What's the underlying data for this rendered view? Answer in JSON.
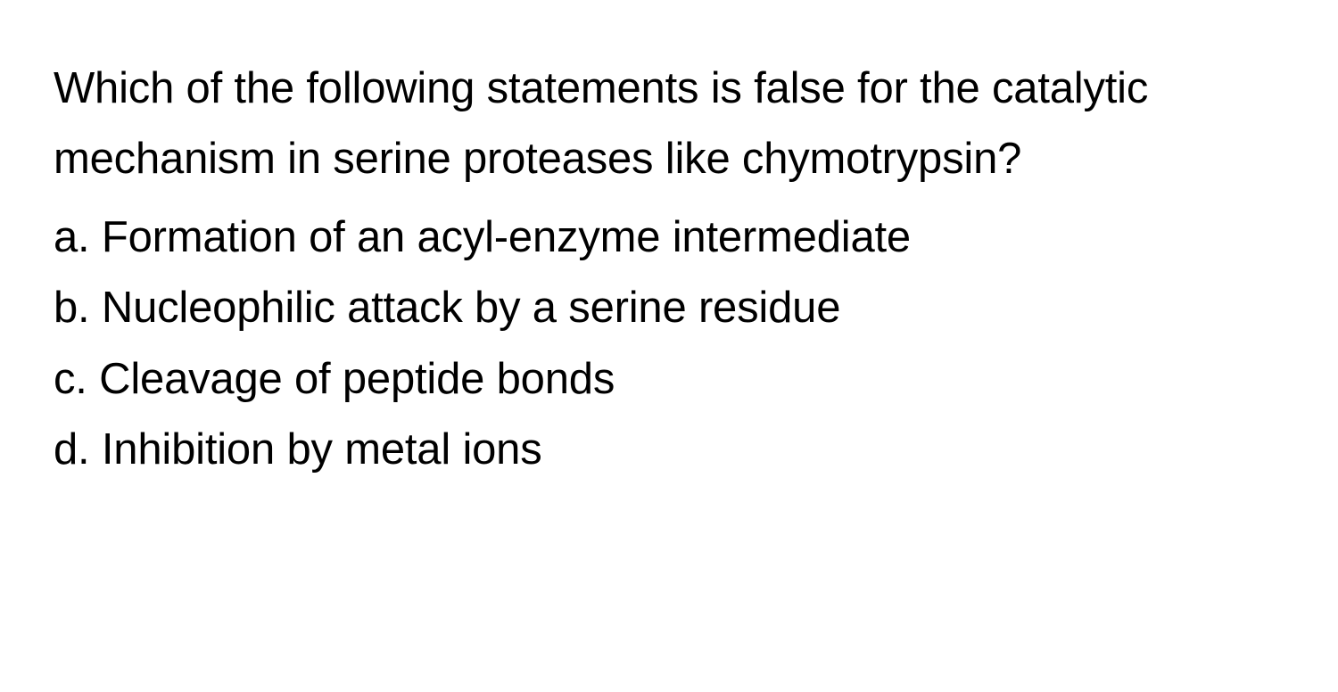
{
  "typography": {
    "font_family": "-apple-system, Helvetica, Arial, sans-serif",
    "font_size_pt": 37,
    "font_weight": 400,
    "line_height": 1.62,
    "text_color": "#000000",
    "background_color": "#ffffff"
  },
  "question": {
    "stem": "Which of the following statements is false for the catalytic mechanism in serine proteases like chymotrypsin?",
    "options": [
      {
        "label": "a.",
        "text": "Formation of an acyl-enzyme intermediate"
      },
      {
        "label": "b.",
        "text": "Nucleophilic attack by a serine residue"
      },
      {
        "label": "c.",
        "text": "Cleavage of peptide bonds"
      },
      {
        "label": "d.",
        "text": "Inhibition by metal ions"
      }
    ]
  }
}
